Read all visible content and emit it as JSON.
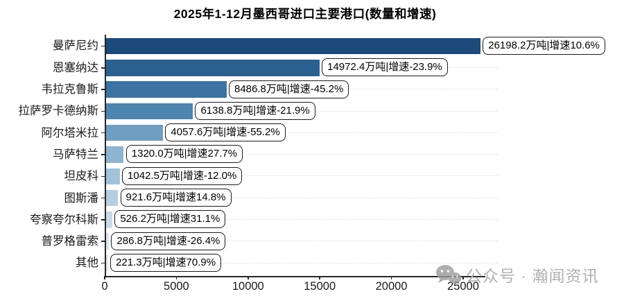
{
  "title": "2025年1-12月墨西哥进口主要港口(数量和增速)",
  "chart_data": {
    "type": "bar",
    "orientation": "horizontal",
    "title": "2025年1-12月墨西哥进口主要港口(数量和增速)",
    "unit": "万吨",
    "categories": [
      "曼萨尼约",
      "恩塞纳达",
      "韦拉克鲁斯",
      "拉萨罗卡德纳斯",
      "阿尔塔米拉",
      "马萨特兰",
      "坦皮科",
      "图斯潘",
      "夸察夸尔科斯",
      "普罗格雷索",
      "其他"
    ],
    "values": [
      26198.2,
      14972.4,
      8486.8,
      6138.8,
      4057.6,
      1320.0,
      1042.5,
      921.6,
      526.2,
      286.8,
      221.3
    ],
    "growth_pct": [
      10.6,
      -23.9,
      -45.2,
      -21.9,
      -55.2,
      27.7,
      -12.0,
      14.8,
      31.1,
      -26.4,
      70.9
    ],
    "bar_labels": [
      "26198.2万吨|增速10.6%",
      "14972.4万吨|增速-23.9%",
      "8486.8万吨|增速-45.2%",
      "6138.8万吨|增速-21.9%",
      "4057.6万吨|增速-55.2%",
      "1320.0万吨|增速27.7%",
      "1042.5万吨|增速-12.0%",
      "921.6万吨|增速14.8%",
      "526.2万吨|增速31.1%",
      "286.8万吨|增速-26.4%",
      "221.3万吨|增速70.9%"
    ],
    "bar_colors": [
      "#1c4a7a",
      "#2a608f",
      "#3a73a4",
      "#4d85b0",
      "#6f9ec3",
      "#8db4d0",
      "#a2c2da",
      "#b5cee2",
      "#c9dbe9",
      "#d8e4ef",
      "#dfe9f3"
    ],
    "x_ticks": [
      "0",
      "5000",
      "10000",
      "15000",
      "20000",
      "25000"
    ],
    "x_tick_values": [
      0,
      5000,
      10000,
      15000,
      20000,
      25000
    ],
    "xlim": [
      0,
      26500
    ],
    "grid": "dotted horizontal line per category row",
    "legend": "none"
  },
  "colors": {
    "axis": "#262626",
    "grid": "#dcdcdc",
    "label_box_border": "#1a1a1a",
    "watermark": "#b0b0b0"
  },
  "watermark": {
    "icon": "wechat-icon",
    "text": "公众号 · 瀚闻资讯"
  }
}
